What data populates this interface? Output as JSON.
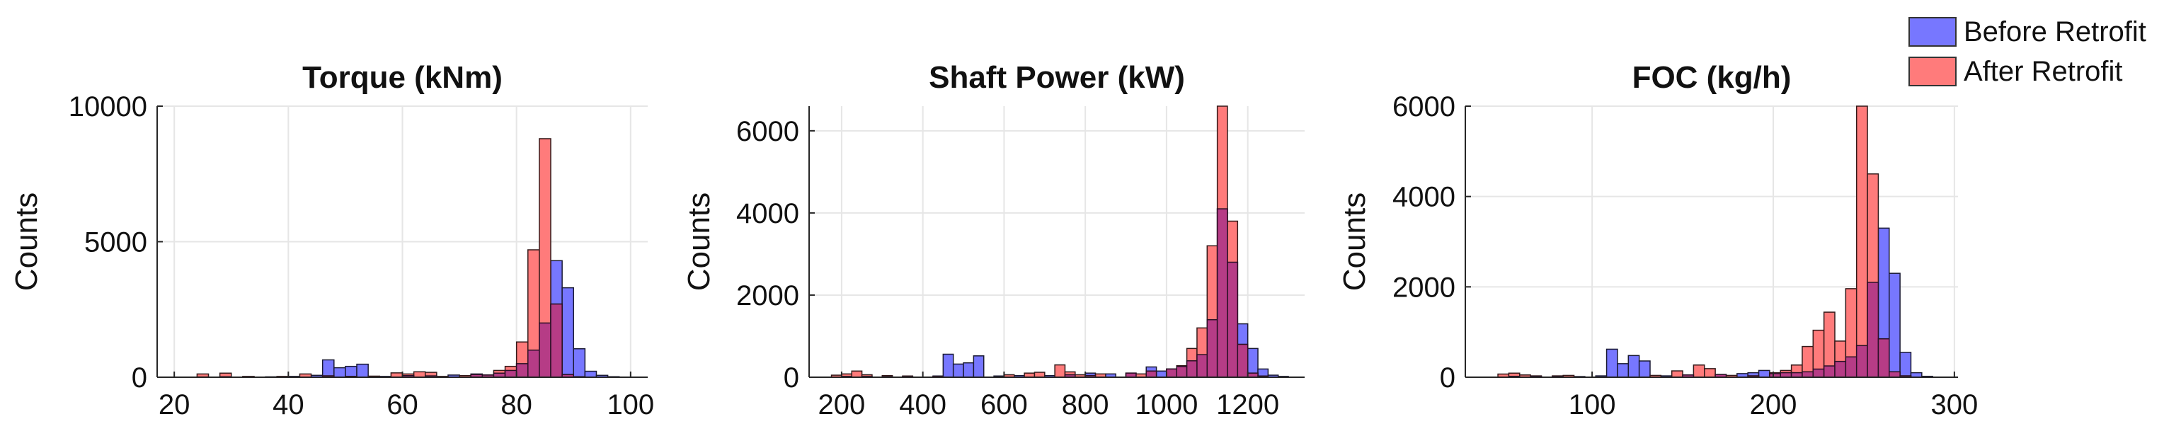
{
  "legend": {
    "items": [
      {
        "label": "Before Retrofit",
        "color": "#7777ff"
      },
      {
        "label": "After Retrofit",
        "color": "#ff7b7b"
      }
    ]
  },
  "style": {
    "before_color": "#7777ff",
    "after_color": "#ff7b7b",
    "overlap_color": "#b63c86",
    "grid": true
  },
  "chart_data": [
    {
      "type": "histogram",
      "title": "Torque (kNm)",
      "ylabel": "Counts",
      "xlim": [
        17,
        103
      ],
      "ylim": [
        0,
        10000
      ],
      "xticks": [
        20,
        40,
        60,
        80,
        100
      ],
      "yticks": [
        0,
        5000,
        10000
      ],
      "bin_width": 2,
      "series": [
        {
          "name": "Before Retrofit",
          "bins": [
            [
              24,
              10
            ],
            [
              28,
              20
            ],
            [
              32,
              10
            ],
            [
              36,
              15
            ],
            [
              40,
              30
            ],
            [
              44,
              70
            ],
            [
              46,
              640
            ],
            [
              48,
              350
            ],
            [
              50,
              400
            ],
            [
              52,
              480
            ],
            [
              56,
              30
            ],
            [
              60,
              60
            ],
            [
              64,
              50
            ],
            [
              68,
              80
            ],
            [
              72,
              120
            ],
            [
              74,
              80
            ],
            [
              76,
              150
            ],
            [
              78,
              250
            ],
            [
              80,
              500
            ],
            [
              82,
              1000
            ],
            [
              84,
              2000
            ],
            [
              86,
              4300
            ],
            [
              88,
              3300
            ],
            [
              90,
              1050
            ],
            [
              92,
              220
            ],
            [
              94,
              70
            ],
            [
              96,
              20
            ]
          ]
        },
        {
          "name": "After Retrofit",
          "bins": [
            [
              24,
              120
            ],
            [
              28,
              150
            ],
            [
              32,
              30
            ],
            [
              38,
              30
            ],
            [
              42,
              120
            ],
            [
              46,
              50
            ],
            [
              50,
              30
            ],
            [
              54,
              40
            ],
            [
              58,
              160
            ],
            [
              60,
              120
            ],
            [
              62,
              200
            ],
            [
              64,
              180
            ],
            [
              66,
              30
            ],
            [
              70,
              60
            ],
            [
              72,
              100
            ],
            [
              74,
              80
            ],
            [
              76,
              250
            ],
            [
              78,
              400
            ],
            [
              80,
              1300
            ],
            [
              82,
              4700
            ],
            [
              84,
              8800
            ],
            [
              86,
              2700
            ],
            [
              88,
              100
            ],
            [
              90,
              20
            ]
          ]
        }
      ]
    },
    {
      "type": "histogram",
      "title": "Shaft Power (kW)",
      "ylabel": "Counts",
      "xlim": [
        120,
        1340
      ],
      "ylim": [
        0,
        6600
      ],
      "xticks": [
        200,
        400,
        600,
        800,
        1000,
        1200
      ],
      "yticks": [
        0,
        2000,
        4000,
        6000
      ],
      "bin_width": 25,
      "series": [
        {
          "name": "Before Retrofit",
          "bins": [
            [
              200,
              20
            ],
            [
              250,
              20
            ],
            [
              300,
              15
            ],
            [
              350,
              15
            ],
            [
              425,
              30
            ],
            [
              450,
              560
            ],
            [
              475,
              320
            ],
            [
              500,
              350
            ],
            [
              525,
              520
            ],
            [
              575,
              30
            ],
            [
              625,
              40
            ],
            [
              700,
              40
            ],
            [
              750,
              60
            ],
            [
              800,
              100
            ],
            [
              850,
              80
            ],
            [
              900,
              100
            ],
            [
              950,
              250
            ],
            [
              975,
              150
            ],
            [
              1000,
              200
            ],
            [
              1025,
              260
            ],
            [
              1050,
              400
            ],
            [
              1075,
              550
            ],
            [
              1100,
              1400
            ],
            [
              1125,
              4100
            ],
            [
              1150,
              2800
            ],
            [
              1175,
              1300
            ],
            [
              1200,
              700
            ],
            [
              1225,
              200
            ],
            [
              1250,
              50
            ],
            [
              1275,
              20
            ]
          ]
        },
        {
          "name": "After Retrofit",
          "bins": [
            [
              175,
              50
            ],
            [
              200,
              80
            ],
            [
              225,
              150
            ],
            [
              250,
              60
            ],
            [
              300,
              40
            ],
            [
              350,
              30
            ],
            [
              425,
              20
            ],
            [
              600,
              60
            ],
            [
              650,
              100
            ],
            [
              675,
              120
            ],
            [
              725,
              300
            ],
            [
              750,
              130
            ],
            [
              775,
              60
            ],
            [
              800,
              40
            ],
            [
              825,
              80
            ],
            [
              900,
              100
            ],
            [
              925,
              80
            ],
            [
              950,
              150
            ],
            [
              1000,
              200
            ],
            [
              1025,
              280
            ],
            [
              1050,
              700
            ],
            [
              1075,
              1200
            ],
            [
              1100,
              3200
            ],
            [
              1125,
              6600
            ],
            [
              1150,
              3800
            ],
            [
              1175,
              800
            ],
            [
              1200,
              100
            ],
            [
              1225,
              30
            ]
          ]
        }
      ]
    },
    {
      "type": "histogram",
      "title": "FOC (kg/h)",
      "ylabel": "Counts",
      "xlim": [
        30,
        302
      ],
      "ylim": [
        0,
        6000
      ],
      "xticks": [
        100,
        200,
        300
      ],
      "yticks": [
        0,
        2000,
        4000,
        6000
      ],
      "bin_width": 6,
      "series": [
        {
          "name": "Before Retrofit",
          "bins": [
            [
              54,
              20
            ],
            [
              66,
              20
            ],
            [
              78,
              15
            ],
            [
              90,
              15
            ],
            [
              102,
              30
            ],
            [
              108,
              620
            ],
            [
              114,
              300
            ],
            [
              120,
              480
            ],
            [
              126,
              360
            ],
            [
              138,
              30
            ],
            [
              150,
              50
            ],
            [
              168,
              60
            ],
            [
              180,
              80
            ],
            [
              186,
              100
            ],
            [
              192,
              150
            ],
            [
              198,
              80
            ],
            [
              204,
              100
            ],
            [
              210,
              100
            ],
            [
              216,
              120
            ],
            [
              222,
              180
            ],
            [
              228,
              250
            ],
            [
              234,
              350
            ],
            [
              240,
              450
            ],
            [
              246,
              700
            ],
            [
              252,
              2100
            ],
            [
              258,
              3300
            ],
            [
              264,
              2300
            ],
            [
              270,
              550
            ],
            [
              276,
              100
            ],
            [
              282,
              20
            ]
          ]
        },
        {
          "name": "After Retrofit",
          "bins": [
            [
              48,
              70
            ],
            [
              54,
              90
            ],
            [
              60,
              50
            ],
            [
              66,
              30
            ],
            [
              78,
              30
            ],
            [
              84,
              40
            ],
            [
              132,
              40
            ],
            [
              144,
              140
            ],
            [
              150,
              50
            ],
            [
              156,
              270
            ],
            [
              162,
              190
            ],
            [
              168,
              60
            ],
            [
              174,
              40
            ],
            [
              186,
              30
            ],
            [
              198,
              100
            ],
            [
              204,
              150
            ],
            [
              210,
              270
            ],
            [
              216,
              680
            ],
            [
              222,
              1040
            ],
            [
              228,
              1440
            ],
            [
              234,
              800
            ],
            [
              240,
              1960
            ],
            [
              246,
              6000
            ],
            [
              252,
              4500
            ],
            [
              258,
              850
            ],
            [
              264,
              120
            ],
            [
              270,
              30
            ]
          ]
        }
      ]
    }
  ]
}
